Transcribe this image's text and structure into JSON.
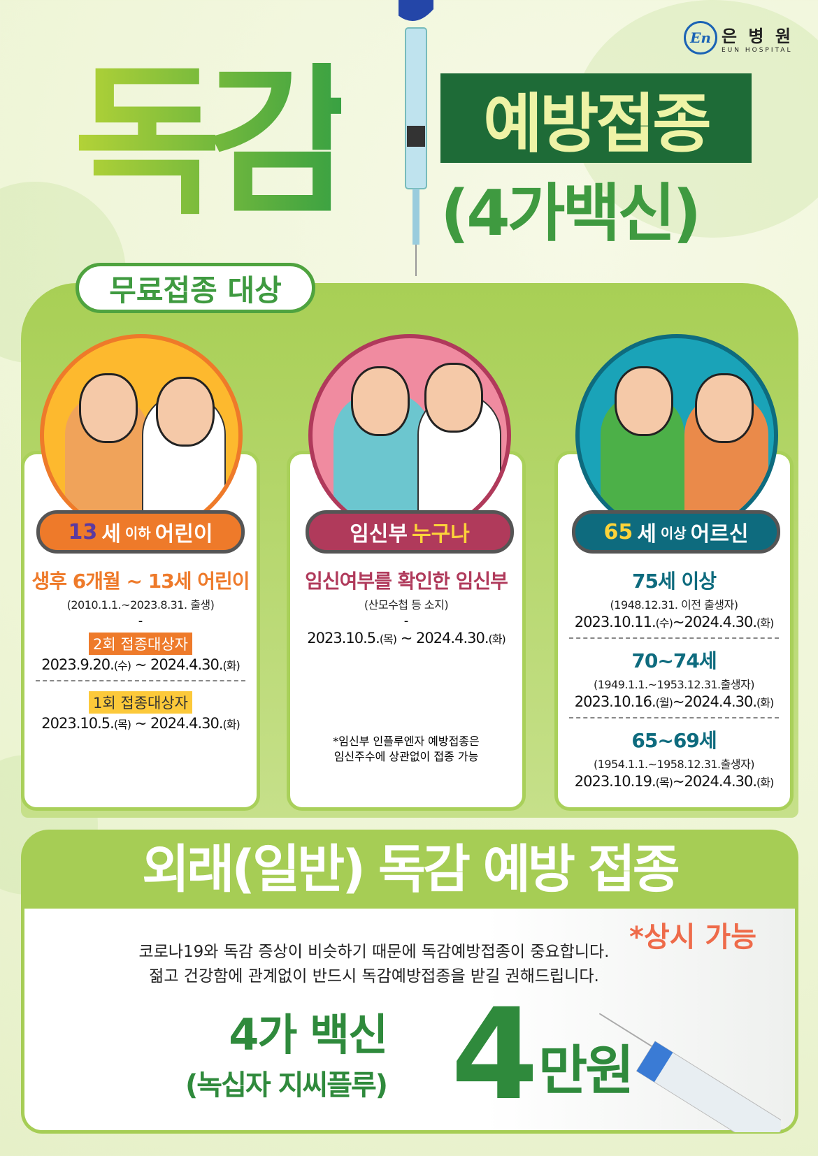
{
  "logo": {
    "name": "은 병 원",
    "en": "EUN HOSPITAL",
    "mark": "En"
  },
  "title": {
    "main": "독감",
    "box": "예방접종",
    "sub": "(4가백신)"
  },
  "free_section": {
    "label": "무료접종 대상"
  },
  "cards": [
    {
      "tag_num": "13",
      "tag_a": "세",
      "tag_small": "이하",
      "tag_b": "어린이",
      "headline": "생후 6개월 ~ 13세 어린이",
      "sub": "(2010.1.1.~2023.8.31. 출생)",
      "dash": "-",
      "g1_label": "2회 접종대상자",
      "g1_date": "2023.9.20.",
      "g1_d1": "(수)",
      "g1_mid": " ~ 2024.4.30.",
      "g1_d2": "(화)",
      "g2_label": "1회 접종대상자",
      "g2_date": "2023.10.5.",
      "g2_d1": "(목)",
      "g2_mid": " ~ 2024.4.30.",
      "g2_d2": "(화)"
    },
    {
      "tag_a": "임신부",
      "tag_b": "누구나",
      "headline": "임신여부를 확인한 임신부",
      "sub": "(산모수첩 등 소지)",
      "dash": "-",
      "date": "2023.10.5.",
      "d1": "(목)",
      "mid": " ~ 2024.4.30.",
      "d2": "(화)",
      "note1": "*임신부 인플루엔자 예방접종은",
      "note2": "임신주수에 상관없이 접종 가능"
    },
    {
      "tag_num": "65",
      "tag_a": "세",
      "tag_small": "이상",
      "tag_b": "어르신",
      "groups": [
        {
          "age": "75세 이상",
          "sub": "(1948.12.31. 이전 출생자)",
          "date": "2023.10.11.",
          "d1": "(수)",
          "mid": "~2024.4.30.",
          "d2": "(화)"
        },
        {
          "age": "70~74세",
          "sub": "(1949.1.1.~1953.12.31.출생자)",
          "date": "2023.10.16.",
          "d1": "(월)",
          "mid": "~2024.4.30.",
          "d2": "(화)"
        },
        {
          "age": "65~69세",
          "sub": "(1954.1.1.~1958.12.31.출생자)",
          "date": "2023.10.19.",
          "d1": "(목)",
          "mid": "~2024.4.30.",
          "d2": "(화)"
        }
      ]
    }
  ],
  "general": {
    "title": "외래(일반) 독감 예방 접종",
    "always": "*상시 가능",
    "msg1": "코로나19와 독감 증상이 비슷하기 때문에 독감예방접종이 중요합니다.",
    "msg2": "젊고 건강함에 관계없이 반드시 독감예방접종을 받길 권해드립니다.",
    "vaccine": "4가 백신",
    "brand": "(녹십자 지씨플루)",
    "price_num": "4",
    "price_unit": "만원"
  },
  "colors": {
    "green": "#3f9a40",
    "dark_green": "#1e6b37",
    "orange": "#ee7a2a",
    "magenta": "#b03a5b",
    "teal": "#0e6b7e"
  }
}
